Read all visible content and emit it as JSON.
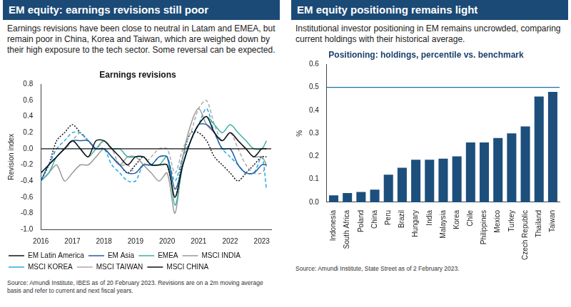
{
  "chart_data": [
    {
      "type": "line",
      "title": "EM equity: earnings revisions still poor",
      "subtitle": "Earnings revisions have been close to neutral in Latam and EMEA, but remain poor in China, Korea and Taiwan, which are weighed down by their high exposure to the tech sector. Some reversal can be expected.",
      "chart_title": "Earnings revisions",
      "ylabel": "Revision index",
      "source": "Source: Amundi Institute, IBES as of 20 February 2023. Revisions are on a 2m moving average basis and refer to current and next fiscal years.",
      "x": [
        2016,
        2016.25,
        2016.5,
        2016.75,
        2017,
        2017.25,
        2017.5,
        2017.75,
        2018,
        2018.25,
        2018.5,
        2018.75,
        2019,
        2019.25,
        2019.5,
        2019.75,
        2020,
        2020.25,
        2020.5,
        2020.75,
        2021,
        2021.25,
        2021.5,
        2021.75,
        2022,
        2022.25,
        2022.5,
        2022.75,
        2023,
        2023.15
      ],
      "series": [
        {
          "name": "EM Latin America",
          "color": "#111111",
          "line_style": "solid",
          "values": [
            -0.3,
            -0.2,
            -0.1,
            0.0,
            0.1,
            0.0,
            -0.1,
            0.1,
            0.1,
            0.0,
            -0.1,
            -0.2,
            -0.1,
            -0.1,
            -0.2,
            -0.2,
            -0.2,
            -0.6,
            -0.2,
            0.1,
            0.3,
            0.4,
            0.2,
            0.1,
            0.2,
            0.1,
            0.0,
            -0.1,
            0.0,
            0.0
          ]
        },
        {
          "name": "EM Asia",
          "color": "#1f5fa8",
          "line_style": "solid",
          "values": [
            -0.4,
            -0.2,
            -0.1,
            0.0,
            0.1,
            0.1,
            0.1,
            0.0,
            0.0,
            -0.1,
            -0.2,
            -0.3,
            -0.3,
            -0.2,
            -0.2,
            -0.1,
            -0.1,
            -0.5,
            -0.2,
            0.1,
            0.3,
            0.3,
            0.2,
            0.0,
            0.0,
            -0.2,
            -0.3,
            -0.3,
            -0.2,
            -0.2
          ]
        },
        {
          "name": "EMEA",
          "color": "#3fb0a0",
          "line_style": "solid",
          "values": [
            -0.4,
            -0.3,
            -0.1,
            0.0,
            0.1,
            0.0,
            -0.1,
            0.0,
            0.1,
            0.0,
            0.0,
            -0.1,
            -0.1,
            -0.1,
            -0.2,
            -0.2,
            -0.1,
            -0.7,
            -0.2,
            0.1,
            0.3,
            0.4,
            0.3,
            0.2,
            0.3,
            0.2,
            0.1,
            0.0,
            0.0,
            0.1
          ]
        },
        {
          "name": "MSCI INDIA",
          "color": "#999999",
          "line_style": "solid",
          "values": [
            -0.4,
            -0.3,
            -0.2,
            -0.4,
            -0.3,
            -0.2,
            -0.2,
            -0.1,
            0.0,
            -0.1,
            -0.2,
            -0.1,
            -0.1,
            -0.2,
            -0.3,
            -0.4,
            -0.3,
            -0.8,
            -0.1,
            0.3,
            0.5,
            0.3,
            0.2,
            0.1,
            0.2,
            0.1,
            0.0,
            -0.1,
            -0.1,
            -0.2
          ]
        },
        {
          "name": "MSCI KOREA",
          "color": "#29a8e0",
          "line_style": "dashed",
          "values": [
            -0.3,
            -0.2,
            0.0,
            0.1,
            0.2,
            0.2,
            0.1,
            0.0,
            0.0,
            -0.2,
            -0.3,
            -0.4,
            -0.4,
            -0.2,
            -0.2,
            -0.1,
            -0.1,
            -0.4,
            -0.1,
            0.1,
            0.3,
            0.5,
            0.2,
            0.0,
            -0.1,
            -0.2,
            -0.3,
            -0.3,
            -0.1,
            -0.5
          ]
        },
        {
          "name": "MSCI TAIWAN",
          "color": "#aaaaaa",
          "line_style": "dashed",
          "values": [
            -0.3,
            -0.2,
            0.0,
            0.0,
            0.1,
            0.2,
            0.1,
            0.0,
            0.1,
            0.0,
            -0.2,
            -0.2,
            -0.3,
            -0.2,
            -0.1,
            0.0,
            0.0,
            -0.3,
            0.0,
            0.2,
            0.5,
            0.6,
            0.3,
            0.1,
            0.2,
            0.0,
            -0.2,
            -0.3,
            -0.3,
            -0.2
          ]
        },
        {
          "name": "MSCI CHINA",
          "color": "#111111",
          "line_style": "dotted",
          "values": [
            -0.4,
            -0.2,
            0.1,
            0.2,
            0.3,
            0.2,
            0.1,
            0.0,
            0.0,
            -0.1,
            -0.2,
            -0.3,
            -0.2,
            -0.1,
            -0.2,
            -0.2,
            -0.2,
            -0.6,
            -0.1,
            0.2,
            0.2,
            0.1,
            -0.1,
            -0.2,
            -0.3,
            -0.4,
            -0.3,
            -0.2,
            -0.1,
            -0.1
          ]
        }
      ],
      "xlim": [
        2016,
        2023.3
      ],
      "xticks": [
        2016,
        2017,
        2018,
        2019,
        2020,
        2021,
        2022,
        2023
      ],
      "ylim": [
        -1.0,
        0.8
      ],
      "yticks": [
        {
          "value": -1.0,
          "label": "-1.0"
        },
        -0.8,
        -0.6,
        -0.4,
        -0.2,
        {
          "value": 0,
          "label": "0.0"
        },
        0.2,
        0.4,
        0.6,
        0.8
      ],
      "grid": false,
      "legend": "bottom",
      "reference_line": 0
    },
    {
      "type": "bar",
      "title": "EM equity positioning remains light",
      "subtitle": "Institutional investor positioning in EM remains uncrowded, comparing current holdings with their historical average.",
      "chart_title": "Positioning: holdings, percentile vs. benchmark",
      "ylabel": "%",
      "source": "Source: Amundi Institute, State Street as of 2 February 2023.",
      "categories": [
        "Indonesia",
        "South Africa",
        "Poland",
        "China",
        "Peru",
        "Brazil",
        "Hungary",
        "India",
        "Malaysia",
        "Korea",
        "Chile",
        "Philippines",
        "Mexico",
        "Turkey",
        "Czech Republic",
        "Thailand",
        "Taiwan"
      ],
      "values": [
        0.03,
        0.04,
        0.045,
        0.055,
        0.12,
        0.15,
        0.185,
        0.185,
        0.19,
        0.2,
        0.26,
        0.26,
        0.28,
        0.3,
        0.33,
        0.46,
        0.48
      ],
      "color": "#1d4f7c",
      "ylim": [
        0,
        0.6
      ],
      "yticks": [
        {
          "value": 0,
          "label": "0.0"
        },
        0.1,
        0.2,
        0.3,
        0.4,
        0.5,
        0.6
      ],
      "grid": false,
      "reference_line": 0.5
    }
  ]
}
